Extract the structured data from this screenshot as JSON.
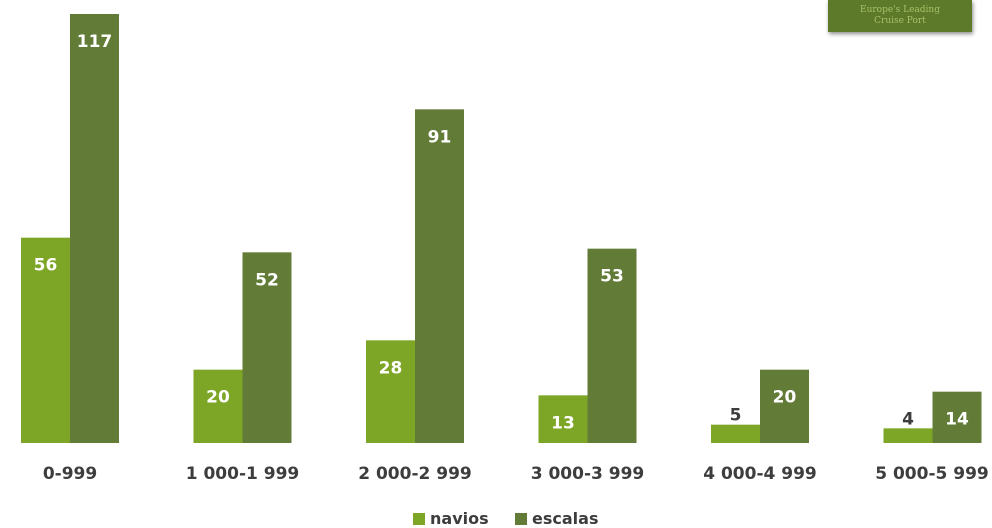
{
  "badge": {
    "line1": "Europe's Leading",
    "line2": "Cruise Port"
  },
  "colors": {
    "navios": "#7ea626",
    "escalas": "#627c38"
  },
  "chart_data": {
    "type": "bar",
    "title": "",
    "xlabel": "",
    "ylabel": "",
    "ylim": [
      0,
      117
    ],
    "grid": false,
    "legend": "bottom",
    "categories": [
      "0-999",
      "1 000-1 999",
      "2 000-2 999",
      "3 000-3 999",
      "4 000-4 999",
      "5 000-5 999"
    ],
    "series": [
      {
        "name": "navios",
        "values": [
          56,
          20,
          28,
          13,
          5,
          4
        ]
      },
      {
        "name": "escalas",
        "values": [
          117,
          52,
          91,
          53,
          20,
          14
        ]
      }
    ]
  }
}
